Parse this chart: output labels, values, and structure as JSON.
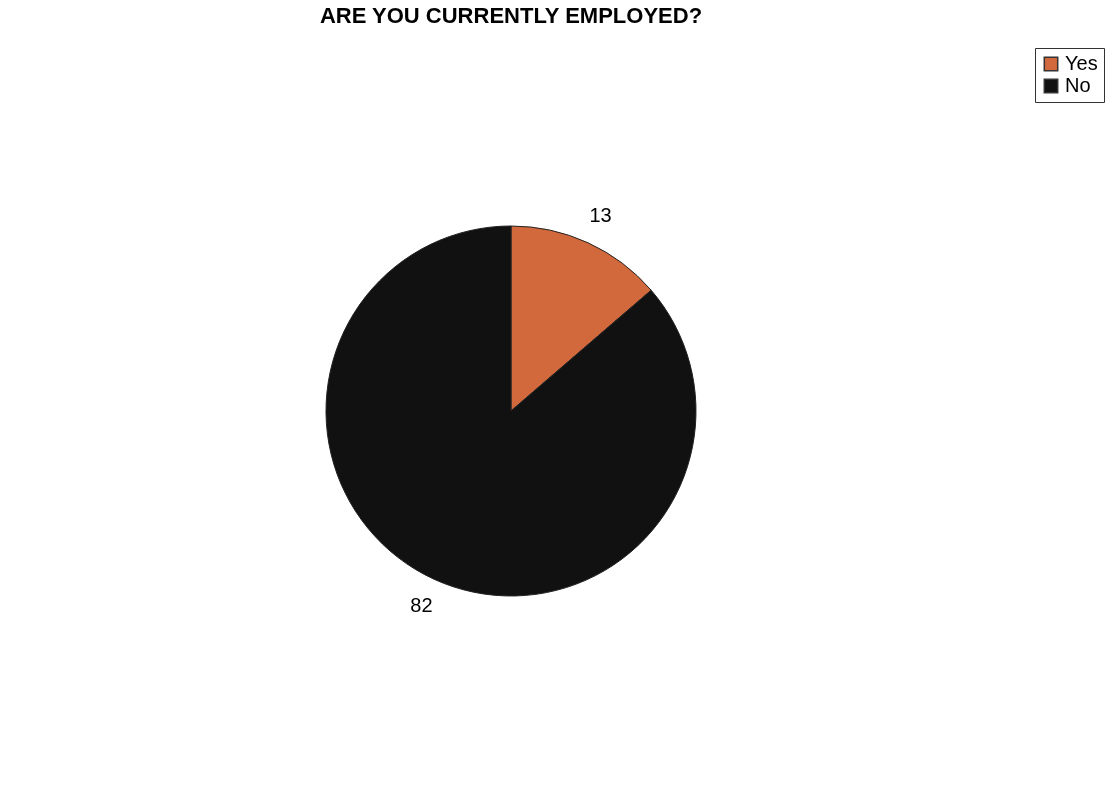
{
  "chart_data": {
    "type": "pie",
    "title": "ARE YOU CURRENTLY EMPLOYED?",
    "categories": [
      "Yes",
      "No"
    ],
    "values": [
      13,
      82
    ],
    "colors": [
      "#d2693c",
      "#111111"
    ],
    "data_labels": true,
    "legend": "right"
  }
}
